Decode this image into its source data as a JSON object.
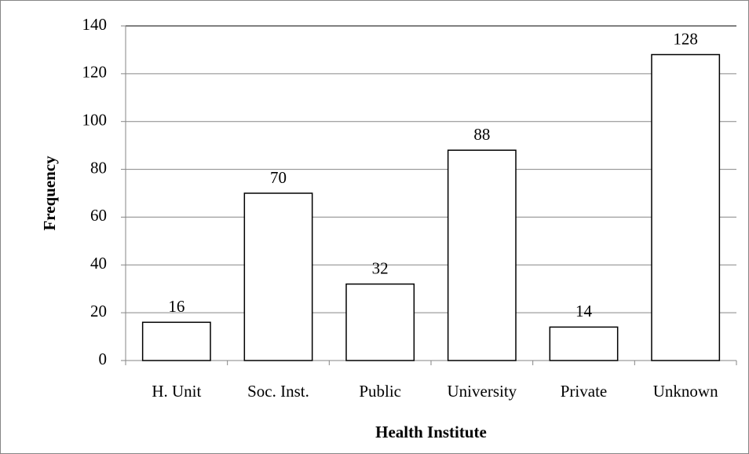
{
  "chart_data": {
    "type": "bar",
    "xlabel": "Health Institute",
    "ylabel": "Frequency",
    "categories": [
      "H. Unit",
      "Soc. Inst.",
      "Public",
      "University",
      "Private",
      "Unknown"
    ],
    "values": [
      16,
      70,
      32,
      88,
      14,
      128
    ],
    "color": "#ffffff",
    "edgecolor": "#000000",
    "ylim": [
      0,
      140
    ],
    "yticks": [
      0,
      20,
      40,
      60,
      80,
      100,
      120,
      140
    ],
    "grid": true
  }
}
